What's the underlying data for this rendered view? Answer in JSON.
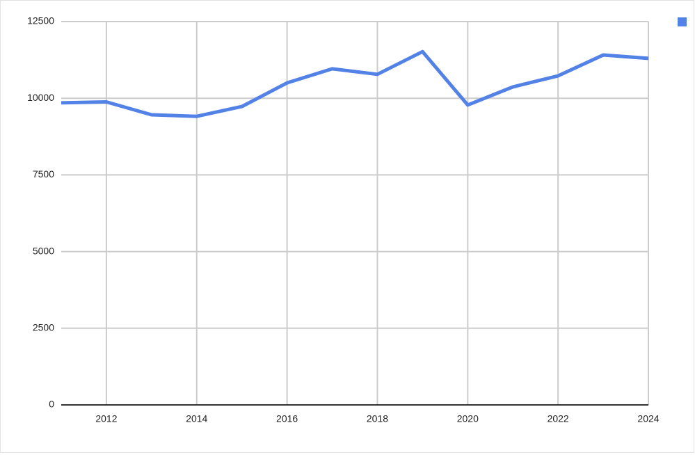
{
  "chart_data": {
    "type": "line",
    "x": [
      2011,
      2012,
      2013,
      2014,
      2015,
      2016,
      2017,
      2018,
      2019,
      2020,
      2021,
      2022,
      2023,
      2024
    ],
    "series": [
      {
        "color": "#5282e6",
        "values": [
          9850,
          9880,
          9460,
          9410,
          9730,
          10500,
          10960,
          10780,
          11520,
          9780,
          10370,
          10730,
          11410,
          11300
        ]
      }
    ],
    "xlim": [
      2011,
      2024
    ],
    "xticks": [
      2012,
      2014,
      2016,
      2018,
      2020,
      2022,
      2024
    ],
    "ylim": [
      0,
      12500
    ],
    "yticks": [
      0,
      2500,
      5000,
      7500,
      10000,
      12500
    ],
    "grid": true,
    "legend": "top-right"
  }
}
